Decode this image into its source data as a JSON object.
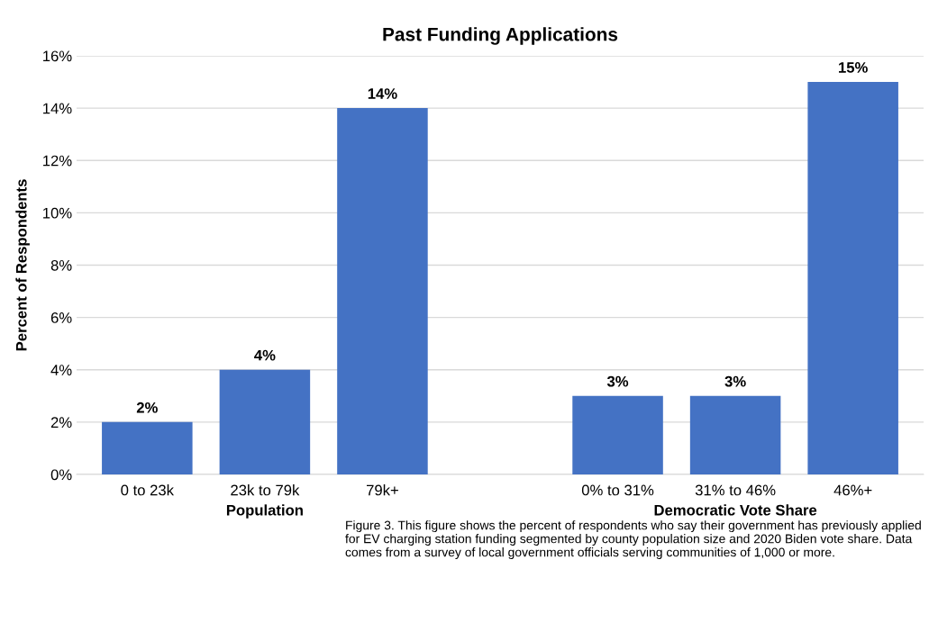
{
  "chart_data": {
    "type": "bar",
    "title": "Past Funding Applications",
    "ylabel": "Percent of Respondents",
    "categories": [
      "0 to 23k",
      "23k to 79k",
      "79k+",
      null,
      "0% to 31%",
      "31% to 46%",
      "46%+"
    ],
    "values": [
      2,
      4,
      14,
      null,
      3,
      3,
      15
    ],
    "value_labels": [
      "2%",
      "4%",
      "14%",
      null,
      "3%",
      "3%",
      "15%"
    ],
    "color": "#4472c4",
    "ylim": [
      0,
      16
    ],
    "yticks": [
      {
        "value": 0,
        "label": "0%"
      },
      {
        "value": 2,
        "label": "2%"
      },
      {
        "value": 4,
        "label": "4%"
      },
      {
        "value": 6,
        "label": "6%"
      },
      {
        "value": 8,
        "label": "8%"
      },
      {
        "value": 10,
        "label": "10%"
      },
      {
        "value": 12,
        "label": "12%"
      },
      {
        "value": 14,
        "label": "14%"
      },
      {
        "value": 16,
        "label": "16%"
      }
    ],
    "grid": "y",
    "annotations": [
      "Population",
      "Democratic Vote Share",
      "Figure 3. This figure shows the percent of respondents who say their government has previously applied for EV charging station funding segmented by county population size and 2020 Biden vote share. Data comes from a survey of local government officials serving communities of 1,000 or more."
    ]
  }
}
